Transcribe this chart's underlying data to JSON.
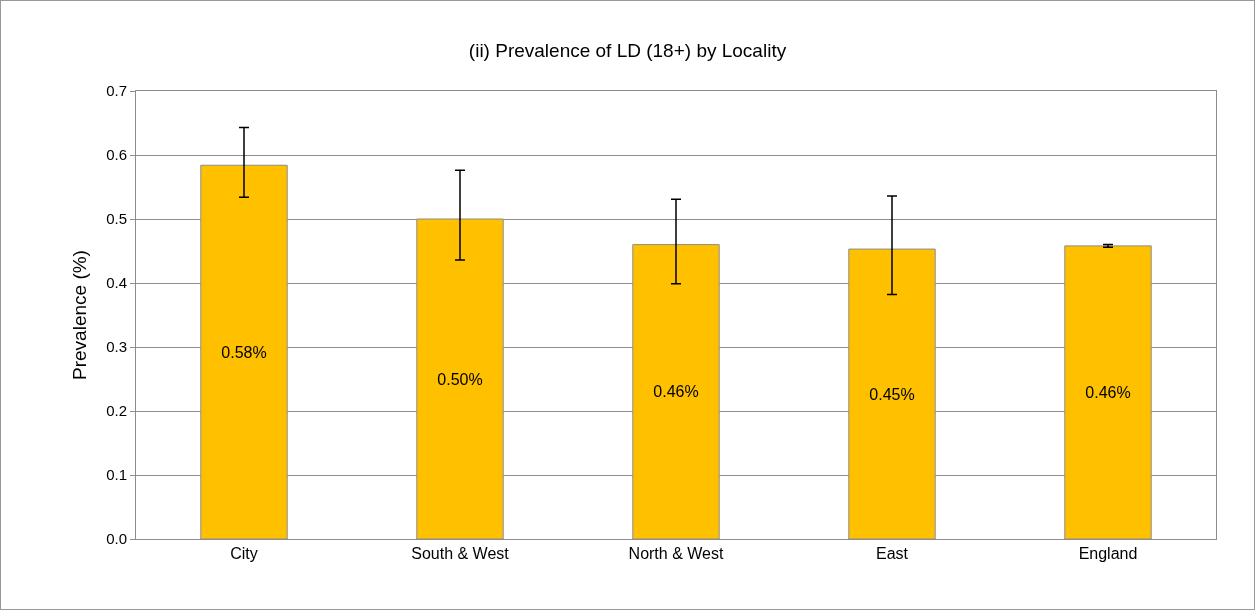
{
  "chart_data": {
    "type": "bar",
    "title": "(ii) Prevalence of LD (18+) by Locality",
    "ylabel": "Prevalence (%)",
    "categories": [
      "City",
      "South & West",
      "North & West",
      "East",
      "England"
    ],
    "values": [
      0.584,
      0.5,
      0.46,
      0.453,
      0.458
    ],
    "colors": [
      "#ffc000",
      "#ffc000",
      "#ffc000",
      "#ffc000",
      "#ffc000"
    ],
    "errors": [
      [
        0.534,
        0.643
      ],
      [
        0.436,
        0.576
      ],
      [
        0.399,
        0.531
      ],
      [
        0.382,
        0.536
      ],
      [
        0.456,
        0.46
      ]
    ],
    "value_labels": [
      "0.58%",
      "0.50%",
      "0.46%",
      "0.45%",
      "0.46%"
    ],
    "ylim": [
      0,
      0.7
    ],
    "yticks": [
      {
        "value": 0,
        "label": "0.0"
      },
      0.1,
      0.2,
      0.3,
      0.4,
      0.5,
      0.6,
      0.7
    ],
    "grid": "y"
  }
}
